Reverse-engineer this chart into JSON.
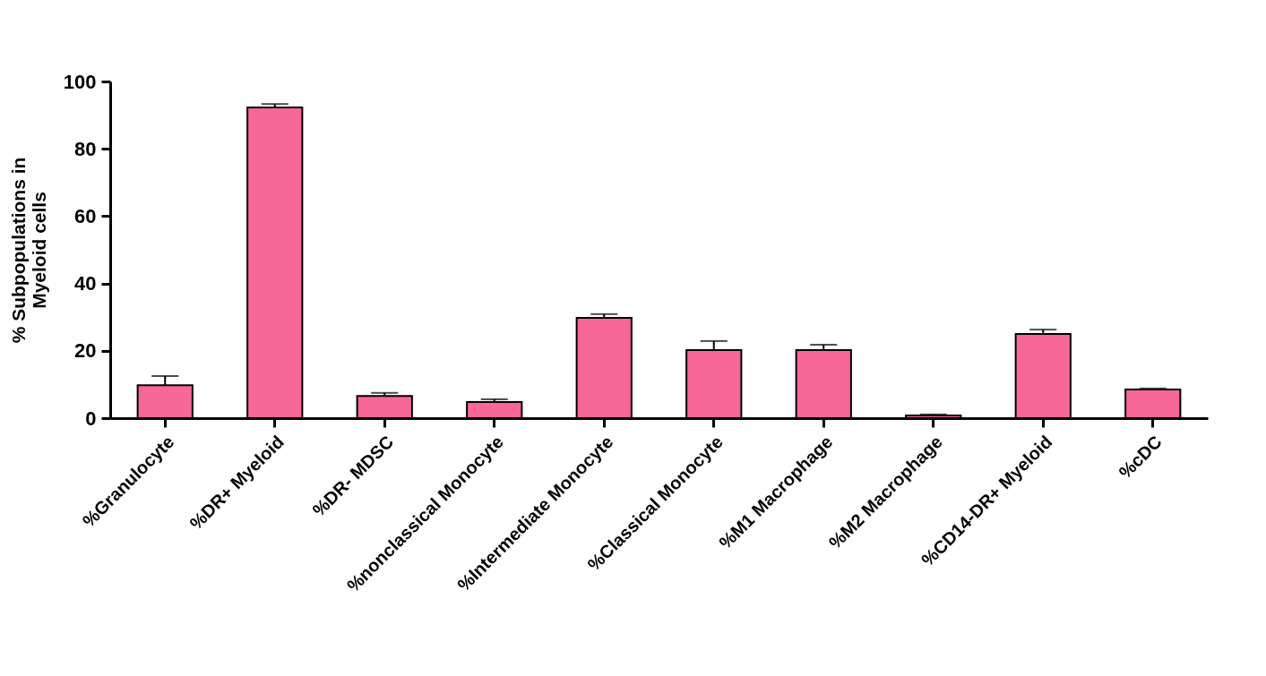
{
  "chart_data": {
    "type": "bar",
    "ylabel": "% Subpopulations in\nMyeloid cells",
    "categories": [
      "%Granulocyte",
      "%DR+ Myeloid",
      "%DR- MDSC",
      "%nonclassical Monocyte",
      "%Intermediate Monocyte",
      "%Classical  Monocyte",
      "%M1 Macrophage",
      "%M2 Macrophage",
      "%CD14-DR+ Myeloid",
      "%cDC"
    ],
    "values": [
      9.8,
      92.3,
      6.6,
      4.8,
      29.8,
      20.2,
      20.2,
      0.8,
      25.0,
      8.5
    ],
    "errors": [
      [
        9.8,
        12.5
      ],
      [
        92.3,
        93.3
      ],
      [
        6.6,
        7.5
      ],
      [
        4.8,
        5.6
      ],
      [
        29.8,
        30.9
      ],
      [
        20.2,
        22.9
      ],
      [
        20.2,
        21.8
      ],
      [
        0.8,
        1.1
      ],
      [
        25.0,
        26.3
      ],
      [
        8.5,
        8.8
      ]
    ],
    "color": "#f76797",
    "ylim": [
      0,
      100
    ],
    "yticks": [
      0,
      20,
      40,
      60,
      80,
      100
    ],
    "grid": false
  }
}
